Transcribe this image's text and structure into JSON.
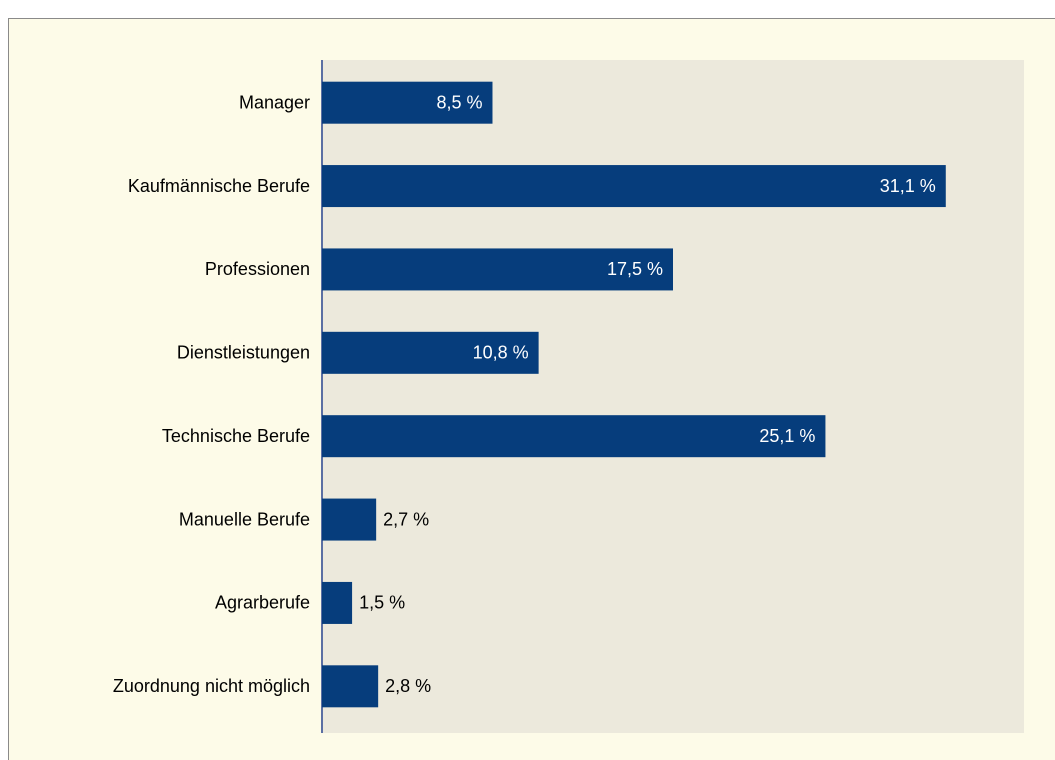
{
  "chart_data": {
    "type": "barh",
    "categories": [
      "Manager",
      "Kaufmännische Berufe",
      "Professionen",
      "Dienstleistungen",
      "Technische Berufe",
      "Manuelle Berufe",
      "Agrarberufe",
      "Zuordnung nicht möglich"
    ],
    "values": [
      8.5,
      31.1,
      17.5,
      10.8,
      25.1,
      2.7,
      1.5,
      2.8
    ],
    "value_labels": [
      "8,5 %",
      "31,1 %",
      "17,5 %",
      "10,8 %",
      "25,1 %",
      "2,7 %",
      "1,5 %",
      "2,8 %"
    ],
    "color": "#063d7c",
    "xlim": [
      0,
      35
    ]
  }
}
